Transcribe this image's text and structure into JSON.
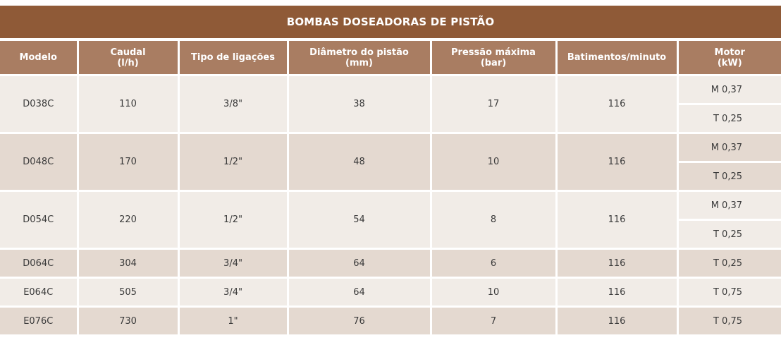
{
  "title": "BOMBAS DOSEADORAS DE PISTÃO",
  "headers": [
    {
      "line1": "Modelo",
      "line2": ""
    },
    {
      "line1": "Caudal",
      "line2": "(l/h)"
    },
    {
      "line1": "Tipo de ligações",
      "line2": ""
    },
    {
      "line1": "Diâmetro do pistão",
      "line2": "(mm)"
    },
    {
      "line1": "Pressão máxima",
      "line2": "(bar)"
    },
    {
      "line1": "Batimentos/minuto",
      "line2": ""
    },
    {
      "line1": "Motor",
      "line2": "(kW)"
    }
  ],
  "rows": [
    {
      "modelo": "D038C",
      "caudal": "110",
      "ligacoes": "3/8\"",
      "diametro": "38",
      "pressao": "17",
      "batimentos": "116",
      "motor": [
        "M 0,37",
        "T 0,25"
      ]
    },
    {
      "modelo": "D048C",
      "caudal": "170",
      "ligacoes": "1/2\"",
      "diametro": "48",
      "pressao": "10",
      "batimentos": "116",
      "motor": [
        "M 0,37",
        "T 0,25"
      ]
    },
    {
      "modelo": "D054C",
      "caudal": "220",
      "ligacoes": "1/2\"",
      "diametro": "54",
      "pressao": "8",
      "batimentos": "116",
      "motor": [
        "M 0,37",
        "T 0,25"
      ]
    },
    {
      "modelo": "D064C",
      "caudal": "304",
      "ligacoes": "3/4\"",
      "diametro": "64",
      "pressao": "6",
      "batimentos": "116",
      "motor": [
        "T 0,25"
      ]
    },
    {
      "modelo": "E064C",
      "caudal": "505",
      "ligacoes": "3/4\"",
      "diametro": "64",
      "pressao": "10",
      "batimentos": "116",
      "motor": [
        "T 0,75"
      ]
    },
    {
      "modelo": "E076C",
      "caudal": "730",
      "ligacoes": "1\"",
      "diametro": "76",
      "pressao": "7",
      "batimentos": "116",
      "motor": [
        "T 0,75"
      ]
    }
  ]
}
